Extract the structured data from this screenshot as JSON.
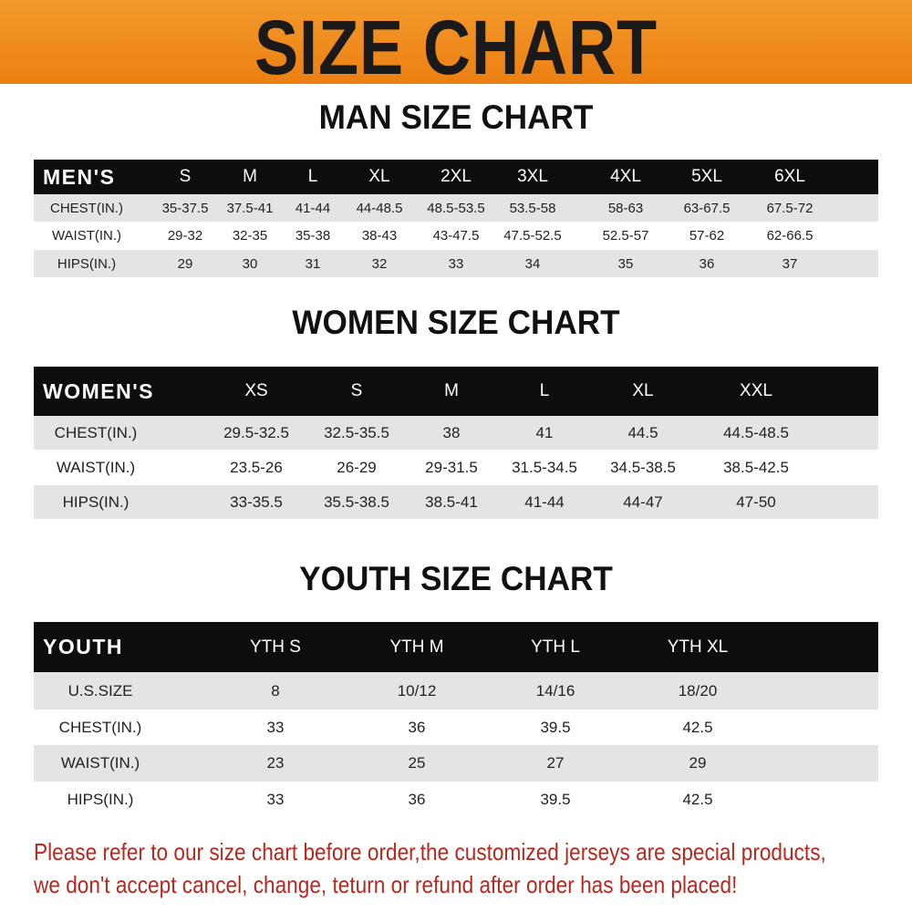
{
  "title": "SIZE CHART",
  "tables": [
    {
      "title": "MAN SIZE CHART",
      "header": [
        "MEN'S",
        "S",
        "M",
        "L",
        "XL",
        "2XL",
        "3XL",
        "4XL",
        "5XL",
        "6XL"
      ],
      "rows": [
        [
          "CHEST(IN.)",
          "35-37.5",
          "37.5-41",
          "41-44",
          "44-48.5",
          "48.5-53.5",
          "53.5-58",
          "58-63",
          "63-67.5",
          "67.5-72"
        ],
        [
          "WAIST(IN.)",
          "29-32",
          "32-35",
          "35-38",
          "38-43",
          "43-47.5",
          "47.5-52.5",
          "52.5-57",
          "57-62",
          "62-66.5"
        ],
        [
          "HIPS(IN.)",
          "29",
          "30",
          "31",
          "32",
          "33",
          "34",
          "35",
          "36",
          "37"
        ]
      ]
    },
    {
      "title": "WOMEN SIZE CHART",
      "header": [
        "WOMEN'S",
        "XS",
        "S",
        "M",
        "L",
        "XL",
        "XXL"
      ],
      "rows": [
        [
          "CHEST(IN.)",
          "29.5-32.5",
          "32.5-35.5",
          "38",
          "41",
          "44.5",
          "44.5-48.5"
        ],
        [
          "WAIST(IN.)",
          "23.5-26",
          "26-29",
          "29-31.5",
          "31.5-34.5",
          "34.5-38.5",
          "38.5-42.5"
        ],
        [
          "HIPS(IN.)",
          "33-35.5",
          "35.5-38.5",
          "38.5-41",
          "41-44",
          "44-47",
          "47-50"
        ]
      ]
    },
    {
      "title": "YOUTH SIZE CHART",
      "header": [
        "YOUTH",
        "YTH S",
        "YTH M",
        "YTH L",
        "YTH XL"
      ],
      "rows": [
        [
          "U.S.SIZE",
          "8",
          "10/12",
          "14/16",
          "18/20"
        ],
        [
          "CHEST(IN.)",
          "33",
          "36",
          "39.5",
          "42.5"
        ],
        [
          "WAIST(IN.)",
          "23",
          "25",
          "27",
          "29"
        ],
        [
          "HIPS(IN.)",
          "33",
          "36",
          "39.5",
          "42.5"
        ]
      ]
    }
  ],
  "notice": [
    "Please refer to our size chart before order,the customized jerseys are special products,",
    "we don't accept cancel, change, teturn or refund after order has been placed!"
  ],
  "colors": {
    "banner": "#ef8a1e",
    "header_row": "#0d0d0d",
    "stripe": "#e4e4e4",
    "notice": "#b42a20"
  }
}
